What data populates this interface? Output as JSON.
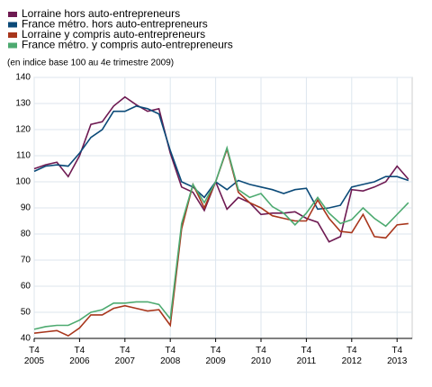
{
  "chart_data": {
    "type": "line",
    "subtitle": "(en indice base 100 au 4e trimestre 2009)",
    "categories": [
      "T4 2005",
      null,
      null,
      null,
      "T4 2006",
      null,
      null,
      null,
      "T4 2007",
      null,
      null,
      null,
      "T4 2008",
      null,
      null,
      null,
      "T4 2009",
      null,
      null,
      null,
      "T4 2010",
      null,
      null,
      null,
      "T4 2011",
      null,
      null,
      null,
      "T4 2012",
      null,
      null,
      null,
      "T4 2013",
      null
    ],
    "series": [
      {
        "name": "Lorraine hors auto-entrepreneurs",
        "color": "#6e1a52",
        "values": [
          105,
          106.5,
          107.5,
          102,
          110,
          122,
          123,
          129,
          132.5,
          129.5,
          127,
          128,
          111,
          98,
          96,
          89,
          100,
          89.5,
          94,
          92,
          87.5,
          88,
          88,
          88.5,
          86,
          84.5,
          77,
          79,
          97,
          96.5,
          98,
          100,
          106,
          101
        ]
      },
      {
        "name": "France métro. hors auto-entrepreneurs",
        "color": "#0b4a78",
        "values": [
          104,
          106,
          106.5,
          106,
          111,
          117,
          120,
          127,
          127,
          129,
          128,
          126,
          112,
          100,
          98,
          94,
          100,
          97,
          100.5,
          99,
          98,
          97,
          95.5,
          97,
          97.5,
          89.5,
          90,
          91,
          98,
          99,
          100,
          102,
          102,
          100.5
        ]
      },
      {
        "name": "Lorraine y compris auto-entrepreneurs",
        "color": "#a8361c",
        "values": [
          42,
          42.5,
          43,
          41,
          44,
          49,
          49,
          51.5,
          52.5,
          51.5,
          50.5,
          51,
          45,
          82,
          99,
          90,
          100,
          112.5,
          96,
          92,
          90,
          87,
          86,
          85,
          85,
          93,
          86,
          81,
          80.5,
          87.5,
          79,
          78.5,
          83.5,
          84
        ]
      },
      {
        "name": "France métro. y compris auto-entrepreneurs",
        "color": "#4daa70",
        "values": [
          43.5,
          44.5,
          45,
          45,
          47,
          50,
          51,
          53.5,
          53.5,
          54,
          54,
          53,
          47.5,
          84,
          99,
          92,
          100,
          113,
          97,
          94,
          95.5,
          90.5,
          88,
          83.5,
          88,
          94,
          88,
          84,
          85.5,
          90,
          86,
          83,
          87.5,
          92
        ]
      }
    ],
    "ylim": [
      40,
      140
    ],
    "yticks": [
      40,
      50,
      60,
      70,
      80,
      90,
      100,
      110,
      120,
      130,
      140
    ],
    "grid": true
  }
}
